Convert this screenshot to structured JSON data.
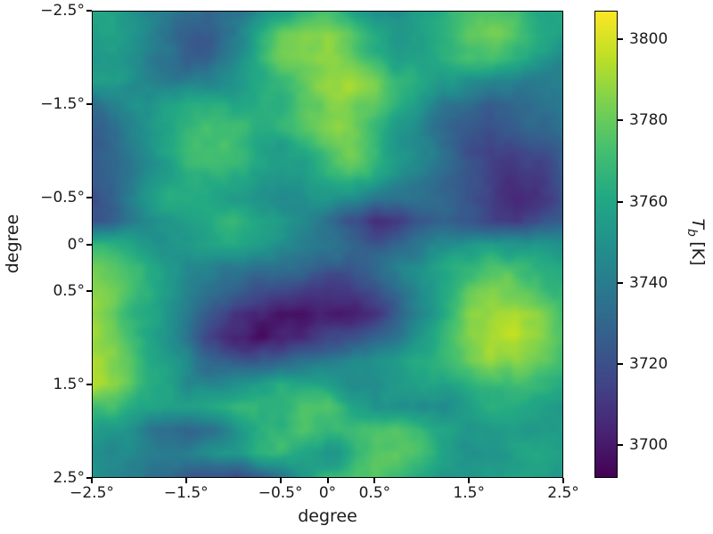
{
  "figure": {
    "background": "#ffffff"
  },
  "chart_data": {
    "type": "heatmap",
    "colormap": "viridis",
    "title": "",
    "xlabel": "degree",
    "ylabel": "degree",
    "x_range": [
      -2.5,
      2.5
    ],
    "y_range": [
      -2.5,
      2.5
    ],
    "y_inverted": true,
    "x_ticks": {
      "values": [
        -2.5,
        -1.5,
        -0.5,
        0,
        0.5,
        1.5,
        2.5
      ],
      "labels": [
        "−2.5°",
        "−1.5°",
        "−0.5°",
        "0°",
        "0.5°",
        "1.5°",
        "2.5°"
      ]
    },
    "y_ticks": {
      "values": [
        -2.5,
        -1.5,
        -0.5,
        0,
        0.5,
        1.5,
        2.5
      ],
      "labels": [
        "−2.5°",
        "−1.5°",
        "−0.5°",
        "0°",
        "0.5°",
        "1.5°",
        "2.5°"
      ]
    },
    "colorbar": {
      "label_symbol": "T",
      "label_subscript": "b",
      "label_unit": "[K]",
      "vmin": 3692,
      "vmax": 3807,
      "ticks": {
        "values": [
          3800,
          3780,
          3760,
          3740,
          3720,
          3700
        ],
        "labels": [
          "3800",
          "3780",
          "3760",
          "3740",
          "3720",
          "3700"
        ]
      }
    },
    "viridis_stops": [
      {
        "t": 0.0,
        "c": "#440154"
      },
      {
        "t": 0.1,
        "c": "#482475"
      },
      {
        "t": 0.2,
        "c": "#414487"
      },
      {
        "t": 0.3,
        "c": "#355f8d"
      },
      {
        "t": 0.4,
        "c": "#2a788e"
      },
      {
        "t": 0.5,
        "c": "#21918c"
      },
      {
        "t": 0.6,
        "c": "#22a884"
      },
      {
        "t": 0.7,
        "c": "#44bf70"
      },
      {
        "t": 0.8,
        "c": "#7ad151"
      },
      {
        "t": 0.9,
        "c": "#bddf26"
      },
      {
        "t": 1.0,
        "c": "#fde725"
      }
    ],
    "grid_units": "K",
    "grid": [
      [
        3760,
        3758,
        3752,
        3742,
        3734,
        3730,
        3738,
        3748,
        3756,
        3764,
        3768,
        3762,
        3755,
        3752,
        3755,
        3762,
        3772,
        3775,
        3770,
        3762,
        3757
      ],
      [
        3762,
        3760,
        3750,
        3736,
        3726,
        3728,
        3740,
        3760,
        3775,
        3784,
        3788,
        3780,
        3765,
        3756,
        3758,
        3768,
        3778,
        3780,
        3774,
        3764,
        3757
      ],
      [
        3758,
        3755,
        3745,
        3733,
        3728,
        3733,
        3746,
        3766,
        3780,
        3786,
        3790,
        3784,
        3770,
        3760,
        3760,
        3766,
        3772,
        3772,
        3764,
        3756,
        3751
      ],
      [
        3760,
        3756,
        3748,
        3739,
        3736,
        3741,
        3751,
        3762,
        3772,
        3780,
        3786,
        3788,
        3780,
        3768,
        3758,
        3750,
        3745,
        3742,
        3740,
        3742,
        3745
      ],
      [
        3736,
        3741,
        3750,
        3758,
        3762,
        3760,
        3758,
        3762,
        3768,
        3775,
        3782,
        3785,
        3778,
        3765,
        3752,
        3740,
        3732,
        3728,
        3730,
        3735,
        3740
      ],
      [
        3728,
        3735,
        3748,
        3760,
        3768,
        3770,
        3765,
        3760,
        3765,
        3775,
        3785,
        3788,
        3775,
        3760,
        3748,
        3735,
        3727,
        3722,
        3725,
        3730,
        3735
      ],
      [
        3725,
        3732,
        3745,
        3760,
        3770,
        3772,
        3768,
        3760,
        3755,
        3760,
        3772,
        3780,
        3770,
        3755,
        3744,
        3732,
        3722,
        3716,
        3715,
        3720,
        3728
      ],
      [
        3722,
        3730,
        3742,
        3755,
        3764,
        3765,
        3760,
        3755,
        3752,
        3758,
        3765,
        3770,
        3762,
        3750,
        3740,
        3730,
        3722,
        3716,
        3712,
        3715,
        3722
      ],
      [
        3725,
        3732,
        3745,
        3757,
        3762,
        3760,
        3758,
        3755,
        3752,
        3750,
        3752,
        3750,
        3742,
        3738,
        3735,
        3728,
        3720,
        3714,
        3710,
        3712,
        3718
      ],
      [
        3722,
        3728,
        3740,
        3752,
        3760,
        3765,
        3768,
        3764,
        3757,
        3747,
        3734,
        3718,
        3709,
        3713,
        3725,
        3728,
        3722,
        3716,
        3714,
        3718,
        3724
      ],
      [
        3768,
        3762,
        3755,
        3752,
        3758,
        3764,
        3765,
        3757,
        3747,
        3739,
        3734,
        3728,
        3723,
        3729,
        3739,
        3748,
        3756,
        3760,
        3756,
        3750,
        3748
      ],
      [
        3785,
        3779,
        3768,
        3755,
        3748,
        3745,
        3742,
        3737,
        3731,
        3727,
        3724,
        3722,
        3728,
        3740,
        3752,
        3762,
        3770,
        3772,
        3768,
        3762,
        3758
      ],
      [
        3788,
        3782,
        3768,
        3755,
        3745,
        3738,
        3729,
        3721,
        3715,
        3711,
        3709,
        3711,
        3719,
        3734,
        3750,
        3765,
        3778,
        3785,
        3782,
        3772,
        3762
      ],
      [
        3786,
        3780,
        3766,
        3752,
        3739,
        3724,
        3709,
        3700,
        3696,
        3698,
        3702,
        3704,
        3712,
        3728,
        3747,
        3765,
        3782,
        3792,
        3795,
        3785,
        3770
      ],
      [
        3790,
        3784,
        3768,
        3751,
        3737,
        3718,
        3704,
        3698,
        3700,
        3706,
        3714,
        3722,
        3730,
        3740,
        3752,
        3768,
        3782,
        3795,
        3798,
        3788,
        3775
      ],
      [
        3795,
        3788,
        3770,
        3755,
        3745,
        3735,
        3728,
        3724,
        3728,
        3735,
        3742,
        3748,
        3752,
        3756,
        3762,
        3770,
        3780,
        3790,
        3790,
        3782,
        3775
      ],
      [
        3796,
        3790,
        3772,
        3756,
        3746,
        3742,
        3748,
        3755,
        3758,
        3755,
        3750,
        3748,
        3750,
        3754,
        3756,
        3758,
        3765,
        3775,
        3778,
        3772,
        3768
      ],
      [
        3775,
        3772,
        3764,
        3756,
        3758,
        3764,
        3768,
        3766,
        3762,
        3772,
        3776,
        3762,
        3755,
        3752,
        3746,
        3744,
        3752,
        3762,
        3765,
        3760,
        3755
      ],
      [
        3760,
        3755,
        3745,
        3736,
        3732,
        3738,
        3750,
        3765,
        3774,
        3776,
        3768,
        3770,
        3776,
        3778,
        3770,
        3758,
        3750,
        3752,
        3756,
        3755,
        3752
      ],
      [
        3750,
        3746,
        3740,
        3736,
        3740,
        3748,
        3758,
        3768,
        3770,
        3762,
        3752,
        3760,
        3775,
        3780,
        3772,
        3758,
        3748,
        3750,
        3758,
        3762,
        3758
      ],
      [
        3748,
        3744,
        3738,
        3730,
        3724,
        3720,
        3722,
        3728,
        3740,
        3755,
        3768,
        3772,
        3775,
        3770,
        3758,
        3750,
        3752,
        3758,
        3762,
        3758,
        3754
      ]
    ]
  }
}
